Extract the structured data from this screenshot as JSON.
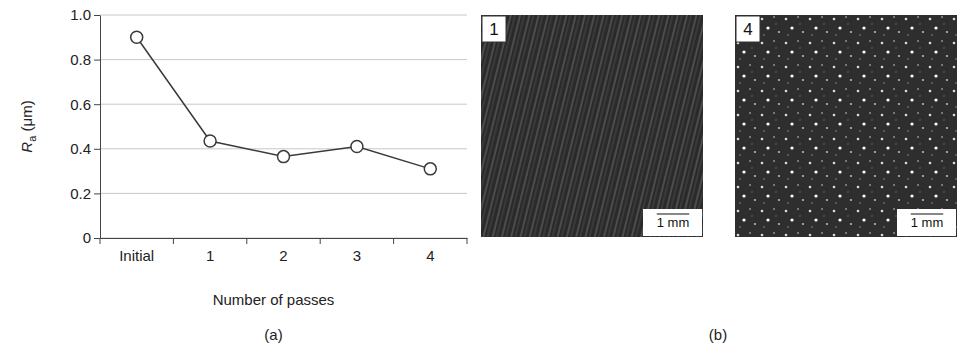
{
  "chart_data": {
    "type": "line",
    "x_label": "Number of passes",
    "y_label": "Ra (μm)",
    "categories": [
      "Initial",
      "1",
      "2",
      "3",
      "4"
    ],
    "values": [
      0.9,
      0.435,
      0.365,
      0.41,
      0.31
    ],
    "color": "#3a3a3a",
    "marker": "circle",
    "line_style": "solid",
    "ylim": [
      0,
      1
    ],
    "yticks": [
      0,
      0.2,
      0.4,
      0.6,
      0.8,
      {
        "value": 1,
        "label": "1.0"
      }
    ],
    "grid": true
  },
  "panels": {
    "labels": [
      "(a)",
      "(b)"
    ]
  },
  "images": [
    {
      "label": "1",
      "scale_bar": "1 mm"
    },
    {
      "label": "4",
      "scale_bar": "1 mm"
    }
  ]
}
